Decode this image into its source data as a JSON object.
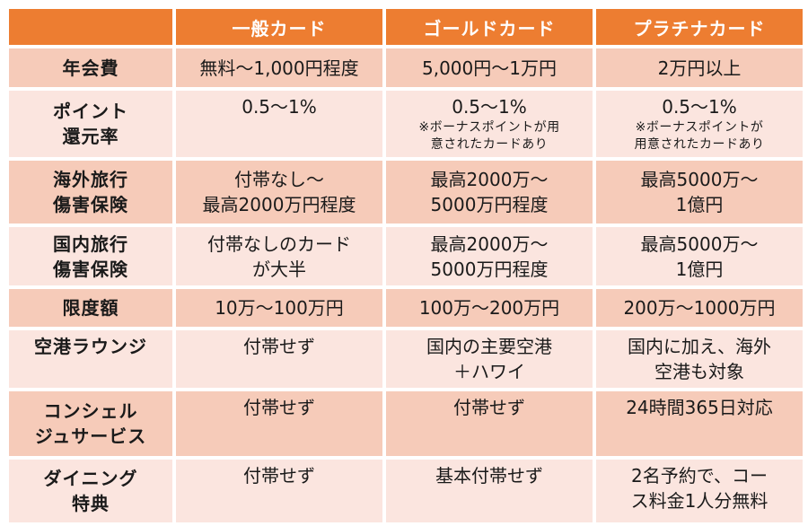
{
  "header": {
    "corner": "",
    "plans": [
      "一般カード",
      "ゴールドカード",
      "プラチナカード"
    ]
  },
  "rows": [
    {
      "label": [
        "年会費"
      ],
      "cells": [
        {
          "lines": [
            "無料～1,000円程度"
          ]
        },
        {
          "lines": [
            "5,000円～1万円"
          ]
        },
        {
          "lines": [
            "2万円以上"
          ]
        }
      ]
    },
    {
      "label": [
        "ポイント",
        "還元率"
      ],
      "cells": [
        {
          "lines": [
            "0.5～1%"
          ]
        },
        {
          "lines": [
            "0.5～1%"
          ],
          "note": [
            "※ボーナスポイントが用",
            "意されたカードあり"
          ]
        },
        {
          "lines": [
            "0.5～1%"
          ],
          "note": [
            "※ボーナスポイントが",
            "用意されたカードあり"
          ]
        }
      ]
    },
    {
      "label": [
        "海外旅行",
        "傷害保険"
      ],
      "cells": [
        {
          "lines": [
            "付帯なし～",
            "最高2000万円程度"
          ]
        },
        {
          "lines": [
            "最高2000万～",
            "5000万円程度"
          ]
        },
        {
          "lines": [
            "最高5000万～",
            "1億円"
          ]
        }
      ]
    },
    {
      "label": [
        "国内旅行",
        "傷害保険"
      ],
      "cells": [
        {
          "lines": [
            "付帯なしのカード",
            "が大半"
          ]
        },
        {
          "lines": [
            "最高2000万～",
            "5000万円程度"
          ]
        },
        {
          "lines": [
            "最高5000万～",
            "1億円"
          ]
        }
      ]
    },
    {
      "label": [
        "限度額"
      ],
      "cells": [
        {
          "lines": [
            "10万～100万円"
          ]
        },
        {
          "lines": [
            "100万～200万円"
          ]
        },
        {
          "lines": [
            "200万～1000万円"
          ]
        }
      ]
    },
    {
      "label": [
        "空港ラウンジ"
      ],
      "cells": [
        {
          "lines": [
            "付帯せず"
          ]
        },
        {
          "lines": [
            "国内の主要空港",
            "＋ハワイ"
          ]
        },
        {
          "lines": [
            "国内に加え、海外",
            "空港も対象"
          ]
        }
      ]
    },
    {
      "label": [
        "コンシェル",
        "ジュサービス"
      ],
      "cells": [
        {
          "lines": [
            "付帯せず"
          ]
        },
        {
          "lines": [
            "付帯せず"
          ]
        },
        {
          "lines": [
            "24時間365日対応"
          ]
        }
      ]
    },
    {
      "label": [
        "ダイニング",
        "特典"
      ],
      "cells": [
        {
          "lines": [
            "付帯せず"
          ]
        },
        {
          "lines": [
            "基本付帯せず"
          ]
        },
        {
          "lines": [
            "2名予約で、コー",
            "ス料金1人分無料"
          ]
        }
      ]
    }
  ],
  "colors": {
    "header_bg": "#ed7d31",
    "row_dark": "#f6cbb9",
    "row_light": "#fbe5df"
  }
}
